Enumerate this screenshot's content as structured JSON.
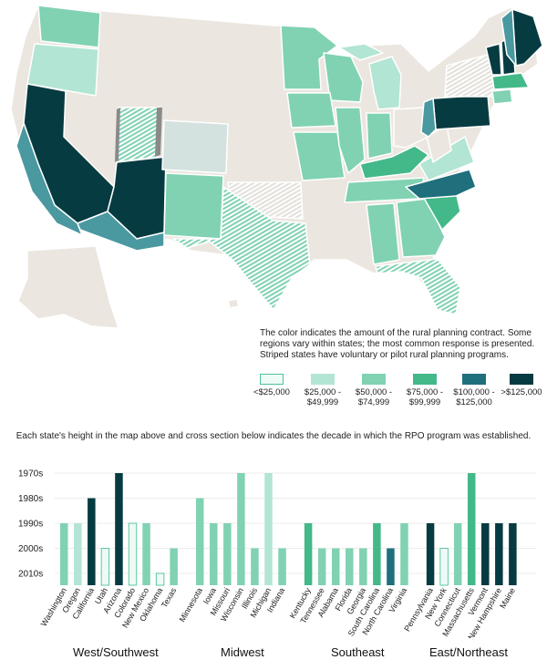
{
  "caption": {
    "line1": "The color indicates the amount of the rural planning contract.  Some",
    "line2": "regions vary within states; the most common response is presented.",
    "line3": "Striped states have voluntary or pilot rural planning programs."
  },
  "legend": [
    {
      "label1": "<$25,000",
      "label2": "",
      "color": "#eefaf5",
      "outline": "#4ec297"
    },
    {
      "label1": "$25,000 -",
      "label2": "$49,999",
      "color": "#b2e5d3",
      "outline": ""
    },
    {
      "label1": "$50,000 -",
      "label2": "$74,999",
      "color": "#80d2b2",
      "outline": ""
    },
    {
      "label1": "$75,000 -",
      "label2": "$99,999",
      "color": "#43b888",
      "outline": ""
    },
    {
      "label1": "$100,000 -",
      "label2": "$125,000",
      "color": "#1f6f7c",
      "outline": ""
    },
    {
      "label1": ">$125,000",
      "label2": "",
      "color": "#063b41",
      "outline": ""
    }
  ],
  "heading": "Each state's height in the map above and cross section below indicates the decade in which the RPO program was established.",
  "colors": {
    "land_grey": "#ebe6df",
    "tier0": "#eefaf5",
    "tier1": "#b2e5d3",
    "tier2": "#80d2b2",
    "tier3": "#43b888",
    "tier4": "#1f6f7c",
    "tier5": "#063b41",
    "mid_teal": "#4a98a0"
  },
  "chart_data": {
    "type": "bar",
    "title": "Decade in which the RPO program was established",
    "y_categories": [
      "1970s",
      "1980s",
      "1990s",
      "2000s",
      "2010s"
    ],
    "y_note": "earlier decade = taller bar",
    "groups": [
      {
        "name": "West/Southwest",
        "states": [
          {
            "state": "Washington",
            "decade": "1990s",
            "tier": 2
          },
          {
            "state": "Oregon",
            "decade": "1990s",
            "tier": 1
          },
          {
            "state": "California",
            "decade": "1980s",
            "tier": 5
          },
          {
            "state": "Utah",
            "decade": "2000s",
            "tier": 0
          },
          {
            "state": "Arizona",
            "decade": "1970s",
            "tier": 5
          },
          {
            "state": "Colorado",
            "decade": "1990s",
            "tier": 0
          },
          {
            "state": "New Mexico",
            "decade": "1990s",
            "tier": 2
          },
          {
            "state": "Oklahoma",
            "decade": "2010s",
            "tier": 0
          },
          {
            "state": "Texas",
            "decade": "2000s",
            "tier": 2
          }
        ]
      },
      {
        "name": "Midwest",
        "states": [
          {
            "state": "Minnesota",
            "decade": "1980s",
            "tier": 2
          },
          {
            "state": "Iowa",
            "decade": "1990s",
            "tier": 2
          },
          {
            "state": "Missouri",
            "decade": "1990s",
            "tier": 2
          },
          {
            "state": "Wisconsin",
            "decade": "1970s",
            "tier": 2
          },
          {
            "state": "Illinois",
            "decade": "2000s",
            "tier": 2
          },
          {
            "state": "Michigan",
            "decade": "1970s",
            "tier": 1
          },
          {
            "state": "Indiana",
            "decade": "2000s",
            "tier": 2
          }
        ]
      },
      {
        "name": "Southeast",
        "states": [
          {
            "state": "Kentucky",
            "decade": "1990s",
            "tier": 3
          },
          {
            "state": "Tennessee",
            "decade": "2000s",
            "tier": 2
          },
          {
            "state": "Alabama",
            "decade": "2000s",
            "tier": 2
          },
          {
            "state": "Florida",
            "decade": "2000s",
            "tier": 2
          },
          {
            "state": "Georgia",
            "decade": "2000s",
            "tier": 2
          },
          {
            "state": "South Carolina",
            "decade": "1990s",
            "tier": 3
          },
          {
            "state": "North Carolina",
            "decade": "2000s",
            "tier": 4
          },
          {
            "state": "Virginia",
            "decade": "1990s",
            "tier": 2
          }
        ]
      },
      {
        "name": "East/Northeast",
        "states": [
          {
            "state": "Pennsylvania",
            "decade": "1990s",
            "tier": 5
          },
          {
            "state": "New York",
            "decade": "2000s",
            "tier": 0
          },
          {
            "state": "Connecticut",
            "decade": "1990s",
            "tier": 2
          },
          {
            "state": "Massachusetts",
            "decade": "1970s",
            "tier": 3
          },
          {
            "state": "Vermont",
            "decade": "1990s",
            "tier": 5
          },
          {
            "state": "New Hampshire",
            "decade": "1990s",
            "tier": 5
          },
          {
            "state": "Maine",
            "decade": "1990s",
            "tier": 5
          }
        ]
      }
    ]
  }
}
